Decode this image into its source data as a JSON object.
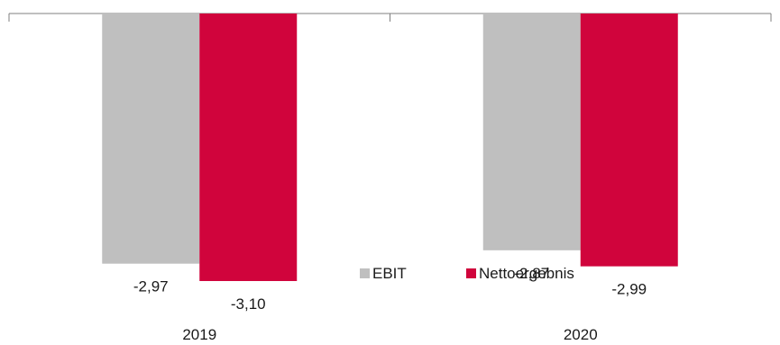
{
  "chart_data": {
    "type": "bar",
    "categories": [
      "2019",
      "2020"
    ],
    "series": [
      {
        "name": "EBIT",
        "values": [
          -2.97,
          -2.87
        ],
        "labels": [
          "-2,97",
          "-2,87"
        ],
        "color": "#bfbfbf"
      },
      {
        "name": "Nettoergebnis",
        "values": [
          -3.1,
          -2.99
        ],
        "labels": [
          "-3,10",
          "-2,99"
        ],
        "color": "#d0043c"
      }
    ],
    "ylim": [
      -3.1,
      -1.1
    ],
    "grid": false,
    "legend": "bottom-right"
  }
}
